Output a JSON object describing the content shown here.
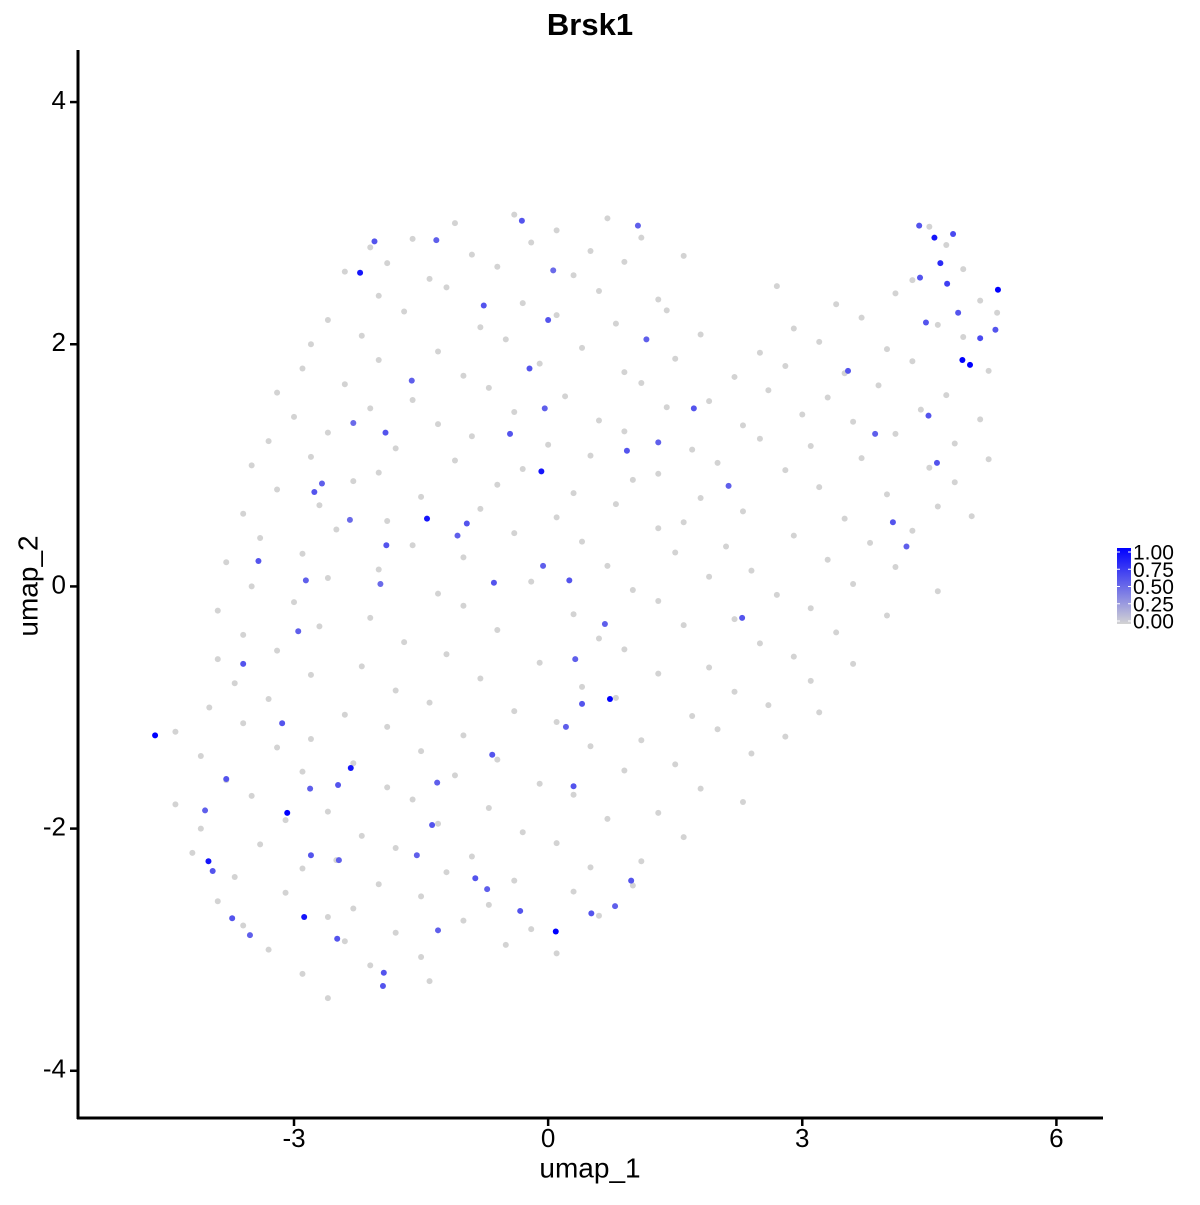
{
  "chart_data": {
    "type": "scatter",
    "title": "Brsk1",
    "x_label": "umap_1",
    "y_label": "umap_2",
    "xlim": [
      -5.55,
      6.55
    ],
    "ylim": [
      -4.39,
      4.43
    ],
    "xticks": [
      -3,
      0,
      3,
      6
    ],
    "yticks": [
      -4,
      -2,
      0,
      2,
      4
    ],
    "grid": false,
    "colorbar": {
      "limits": [
        0,
        1
      ],
      "colors": [
        "#d3d3d3",
        "#0000ff"
      ],
      "ticks": [
        {
          "value": 0,
          "label": "0.00"
        },
        {
          "value": 0.25,
          "label": "0.25"
        },
        {
          "value": 0.5,
          "label": "0.50"
        },
        {
          "value": 0.75,
          "label": "0.75"
        },
        {
          "value": 1,
          "label": "1.00"
        }
      ]
    },
    "x": [
      -1.1,
      -0.4,
      0.1,
      0.7,
      4.5,
      -2.1,
      -1.6,
      -0.9,
      -0.2,
      0.5,
      1.1,
      1.6,
      4.7,
      -2.4,
      -1.9,
      -1.4,
      -0.6,
      0.3,
      0.9,
      4.3,
      4.9,
      -2.0,
      -1.2,
      -0.3,
      0.6,
      1.3,
      2.7,
      3.4,
      4.1,
      5.1,
      -2.6,
      -1.7,
      -0.8,
      0.1,
      0.8,
      1.4,
      2.9,
      3.7,
      4.6,
      5.3,
      -2.8,
      -2.2,
      -1.3,
      -0.5,
      0.4,
      1.8,
      2.5,
      3.2,
      4.0,
      4.9,
      -2.9,
      -2.0,
      -1.0,
      -0.1,
      0.9,
      1.5,
      2.2,
      2.8,
      3.5,
      4.3,
      5.2,
      -3.2,
      -2.4,
      -1.6,
      -0.7,
      0.2,
      1.1,
      1.9,
      2.6,
      3.3,
      3.9,
      4.7,
      -3.0,
      -2.1,
      -1.3,
      -0.4,
      0.6,
      1.4,
      2.3,
      3.0,
      3.6,
      4.4,
      5.1,
      -3.3,
      -2.6,
      -1.8,
      -0.9,
      0.0,
      0.9,
      1.7,
      2.5,
      3.1,
      4.1,
      4.8,
      -3.5,
      -2.8,
      -2.0,
      -1.1,
      -0.3,
      0.5,
      1.3,
      2.0,
      2.8,
      3.7,
      4.5,
      5.2,
      -3.2,
      -2.3,
      -1.5,
      -0.6,
      0.3,
      1.0,
      1.8,
      3.2,
      4.0,
      4.8,
      -3.6,
      -2.7,
      -1.9,
      -0.8,
      0.1,
      0.8,
      1.6,
      2.3,
      3.5,
      4.6,
      5.0,
      -3.4,
      -2.5,
      -1.6,
      -0.4,
      0.4,
      1.3,
      2.1,
      2.9,
      3.8,
      4.3,
      -3.8,
      -2.9,
      -2.0,
      -1.0,
      0.7,
      1.5,
      2.4,
      3.3,
      4.1,
      -3.5,
      -2.6,
      -1.3,
      -0.2,
      1.0,
      1.9,
      2.7,
      3.6,
      4.6,
      -3.9,
      -3.0,
      -2.1,
      -1.0,
      0.3,
      1.3,
      2.2,
      3.1,
      4.0,
      -3.6,
      -2.7,
      -1.7,
      -0.6,
      0.6,
      1.6,
      2.5,
      3.4,
      -3.9,
      -3.2,
      -2.2,
      -1.2,
      -0.1,
      0.9,
      1.9,
      2.9,
      3.6,
      -3.7,
      -2.8,
      -1.8,
      -0.8,
      0.4,
      1.3,
      2.2,
      3.1,
      -4.0,
      -3.3,
      -2.4,
      -1.4,
      -0.4,
      0.8,
      1.7,
      2.6,
      3.2,
      -4.4,
      -3.6,
      -2.8,
      -1.9,
      -1.0,
      0.1,
      1.1,
      2.0,
      2.8,
      -4.1,
      -3.2,
      -2.3,
      -1.5,
      -0.6,
      0.5,
      1.5,
      2.4,
      -3.8,
      -2.9,
      -1.9,
      -1.1,
      -0.1,
      0.9,
      1.8,
      -4.4,
      -3.5,
      -2.6,
      -1.6,
      -0.7,
      0.3,
      1.3,
      2.3,
      -4.1,
      -3.1,
      -2.2,
      -1.3,
      -0.3,
      0.7,
      1.6,
      -4.2,
      -3.4,
      -2.5,
      -1.8,
      -0.9,
      0.1,
      1.1,
      -3.7,
      -2.9,
      -2.0,
      -1.2,
      -0.4,
      0.5,
      1.0,
      -3.9,
      -3.1,
      -2.3,
      -1.5,
      -0.7,
      0.3,
      -3.6,
      -2.6,
      -1.8,
      -1.0,
      -0.2,
      0.6,
      -3.3,
      -2.4,
      -1.5,
      -0.5,
      0.1,
      -2.9,
      -2.1,
      -1.4,
      -2.6,
      -2.05,
      -1.32,
      -0.31,
      0.06,
      1.06,
      -0.76,
      0.0,
      1.16,
      -0.22,
      -1.61,
      -1.92,
      -2.3,
      -0.04,
      -0.45,
      1.72,
      1.3,
      0.93,
      -2.76,
      -2.67,
      -2.34,
      -1.91,
      -2.86,
      -3.42,
      -2.95,
      -3.6,
      -1.98,
      -0.64,
      -0.06,
      0.25,
      0.67,
      0.4,
      0.21,
      0.3,
      -0.66,
      -1.31,
      -1.37,
      -1.55,
      -2.48,
      -2.81,
      -3.14,
      -3.8,
      -4.05,
      -3.96,
      -3.73,
      -3.52,
      -2.8,
      -2.47,
      -1.94,
      -1.95,
      -1.3,
      -0.86,
      -0.72,
      -0.33,
      0.51,
      0.79,
      0.98,
      -1.07,
      -0.96,
      2.13,
      2.29,
      3.54,
      3.86,
      4.07,
      4.23,
      4.59,
      4.49,
      4.71,
      4.39,
      4.84,
      5.1,
      5.28,
      4.46,
      4.38,
      4.78,
      0.32,
      -2.49,
      -4.64,
      -2.22,
      4.56,
      4.63,
      5.31,
      4.89,
      4.98,
      -0.08,
      -1.43,
      0.73,
      -2.33,
      -3.08,
      -4.01,
      -2.88,
      0.09
    ],
    "y": [
      3.0,
      3.07,
      2.94,
      3.04,
      2.97,
      2.8,
      2.87,
      2.74,
      2.84,
      2.77,
      2.88,
      2.73,
      2.82,
      2.6,
      2.67,
      2.54,
      2.64,
      2.57,
      2.68,
      2.53,
      2.62,
      2.4,
      2.47,
      2.34,
      2.44,
      2.37,
      2.48,
      2.33,
      2.42,
      2.36,
      2.2,
      2.27,
      2.14,
      2.24,
      2.17,
      2.28,
      2.13,
      2.22,
      2.16,
      2.26,
      2.0,
      2.07,
      1.94,
      2.04,
      1.97,
      2.08,
      1.93,
      2.02,
      1.96,
      2.06,
      1.8,
      1.87,
      1.74,
      1.84,
      1.77,
      1.88,
      1.73,
      1.82,
      1.76,
      1.86,
      1.78,
      1.6,
      1.67,
      1.54,
      1.64,
      1.57,
      1.68,
      1.53,
      1.62,
      1.56,
      1.66,
      1.58,
      1.4,
      1.47,
      1.34,
      1.44,
      1.37,
      1.48,
      1.33,
      1.42,
      1.36,
      1.46,
      1.38,
      1.2,
      1.27,
      1.14,
      1.24,
      1.17,
      1.28,
      1.13,
      1.22,
      1.16,
      1.26,
      1.18,
      1.0,
      1.07,
      0.94,
      1.04,
      0.97,
      1.08,
      0.93,
      1.02,
      0.96,
      1.06,
      0.98,
      1.05,
      0.8,
      0.87,
      0.74,
      0.84,
      0.77,
      0.88,
      0.73,
      0.82,
      0.76,
      0.86,
      0.6,
      0.67,
      0.54,
      0.64,
      0.57,
      0.68,
      0.53,
      0.62,
      0.56,
      0.66,
      0.58,
      0.4,
      0.47,
      0.34,
      0.44,
      0.37,
      0.48,
      0.33,
      0.42,
      0.36,
      0.46,
      0.2,
      0.27,
      0.14,
      0.24,
      0.17,
      0.28,
      0.13,
      0.22,
      0.16,
      0,
      0.07,
      -0.06,
      0.04,
      -0.03,
      0.08,
      -0.07,
      0.02,
      -0.04,
      -0.2,
      -0.13,
      -0.26,
      -0.16,
      -0.23,
      -0.12,
      -0.27,
      -0.18,
      -0.24,
      -0.4,
      -0.33,
      -0.46,
      -0.36,
      -0.43,
      -0.32,
      -0.47,
      -0.38,
      -0.6,
      -0.53,
      -0.66,
      -0.56,
      -0.63,
      -0.52,
      -0.67,
      -0.58,
      -0.64,
      -0.8,
      -0.73,
      -0.86,
      -0.76,
      -0.83,
      -0.72,
      -0.87,
      -0.78,
      -1.0,
      -0.93,
      -1.06,
      -0.96,
      -1.03,
      -0.92,
      -1.07,
      -0.98,
      -1.04,
      -1.2,
      -1.13,
      -1.26,
      -1.16,
      -1.23,
      -1.12,
      -1.27,
      -1.18,
      -1.24,
      -1.4,
      -1.33,
      -1.46,
      -1.36,
      -1.43,
      -1.32,
      -1.47,
      -1.38,
      -1.6,
      -1.53,
      -1.66,
      -1.56,
      -1.63,
      -1.52,
      -1.67,
      -1.8,
      -1.73,
      -1.86,
      -1.76,
      -1.83,
      -1.72,
      -1.87,
      -1.78,
      -2.0,
      -1.93,
      -2.06,
      -1.96,
      -2.03,
      -1.92,
      -2.07,
      -2.2,
      -2.13,
      -2.26,
      -2.16,
      -2.23,
      -2.12,
      -2.27,
      -2.4,
      -2.33,
      -2.46,
      -2.36,
      -2.43,
      -2.32,
      -2.47,
      -2.6,
      -2.53,
      -2.66,
      -2.56,
      -2.63,
      -2.52,
      -2.8,
      -2.73,
      -2.86,
      -2.76,
      -2.83,
      -2.72,
      -3.0,
      -2.93,
      -3.06,
      -2.96,
      -3.03,
      -3.2,
      -3.13,
      -3.26,
      -3.4,
      2.85,
      2.86,
      3.02,
      2.61,
      2.98,
      2.32,
      2.2,
      2.04,
      1.8,
      1.7,
      1.27,
      1.35,
      1.47,
      1.26,
      1.47,
      1.19,
      1.12,
      0.78,
      0.85,
      0.55,
      0.34,
      0.05,
      0.21,
      -0.37,
      -0.64,
      0.02,
      0.03,
      0.17,
      0.05,
      -0.31,
      -0.97,
      -1.16,
      -1.65,
      -1.39,
      -1.62,
      -1.97,
      -2.22,
      -1.64,
      -1.67,
      -1.13,
      -1.59,
      -1.85,
      -2.35,
      -2.74,
      -2.88,
      -2.22,
      -2.26,
      -3.19,
      -3.3,
      -2.84,
      -2.41,
      -2.5,
      -2.68,
      -2.7,
      -2.64,
      -2.43,
      0.42,
      0.52,
      0.83,
      -0.26,
      1.78,
      1.26,
      0.53,
      0.33,
      1.02,
      1.41,
      2.5,
      2.55,
      2.26,
      2.05,
      2.12,
      2.18,
      2.98,
      2.91,
      -0.6,
      -2.91,
      -1.23,
      2.59,
      2.88,
      2.67,
      2.45,
      1.87,
      1.83,
      0.95,
      0.56,
      -0.93,
      -1.5,
      -1.87,
      -2.27,
      -2.73,
      -2.85
    ],
    "values": [
      0,
      0,
      0,
      0,
      0,
      0,
      0,
      0,
      0,
      0,
      0,
      0,
      0,
      0,
      0,
      0,
      0,
      0,
      0,
      0,
      0,
      0,
      0,
      0,
      0,
      0,
      0,
      0,
      0,
      0,
      0,
      0,
      0,
      0,
      0,
      0,
      0,
      0,
      0,
      0,
      0,
      0,
      0,
      0,
      0,
      0,
      0,
      0,
      0,
      0,
      0,
      0,
      0,
      0,
      0,
      0,
      0,
      0,
      0,
      0,
      0,
      0,
      0,
      0,
      0,
      0,
      0,
      0,
      0,
      0,
      0,
      0,
      0,
      0,
      0,
      0,
      0,
      0,
      0,
      0,
      0,
      0,
      0,
      0,
      0,
      0,
      0,
      0,
      0,
      0,
      0,
      0,
      0,
      0,
      0,
      0,
      0,
      0,
      0,
      0,
      0,
      0,
      0,
      0,
      0,
      0,
      0,
      0,
      0,
      0,
      0,
      0,
      0,
      0,
      0,
      0,
      0,
      0,
      0,
      0,
      0,
      0,
      0,
      0,
      0,
      0,
      0,
      0,
      0,
      0,
      0,
      0,
      0,
      0,
      0,
      0,
      0,
      0,
      0,
      0,
      0,
      0,
      0,
      0,
      0,
      0,
      0,
      0,
      0,
      0,
      0,
      0,
      0,
      0,
      0,
      0,
      0,
      0,
      0,
      0,
      0,
      0,
      0,
      0,
      0,
      0,
      0,
      0,
      0,
      0,
      0,
      0,
      0,
      0,
      0,
      0,
      0,
      0,
      0,
      0,
      0,
      0,
      0,
      0,
      0,
      0,
      0,
      0,
      0,
      0,
      0,
      0,
      0,
      0,
      0,
      0,
      0,
      0,
      0,
      0,
      0,
      0,
      0,
      0,
      0,
      0,
      0,
      0,
      0,
      0,
      0,
      0,
      0,
      0,
      0,
      0,
      0,
      0,
      0,
      0,
      0,
      0,
      0,
      0,
      0,
      0,
      0,
      0,
      0,
      0,
      0,
      0,
      0,
      0,
      0,
      0,
      0,
      0,
      0,
      0,
      0,
      0,
      0,
      0,
      0,
      0,
      0,
      0,
      0,
      0,
      0,
      0,
      0,
      0,
      0,
      0,
      0,
      0,
      0,
      0,
      0,
      0,
      0,
      0,
      0,
      0,
      0,
      0,
      0,
      0,
      0,
      0,
      0.6,
      0.55,
      0.6,
      0.5,
      0.55,
      0.6,
      0.6,
      0.55,
      0.6,
      0.55,
      0.6,
      0.5,
      0.55,
      0.6,
      0.6,
      0.55,
      0.6,
      0.6,
      0.55,
      0.5,
      0.6,
      0.55,
      0.6,
      0.55,
      0.6,
      0.5,
      0.6,
      0.55,
      0.6,
      0.55,
      0.6,
      0.55,
      0.6,
      0.6,
      0.55,
      0.6,
      0.55,
      0.6,
      0.55,
      0.6,
      0.6,
      0.55,
      0.6,
      0.6,
      0.55,
      0.6,
      0.55,
      0.6,
      0.6,
      0.55,
      0.6,
      0.55,
      0.6,
      0.6,
      0.55,
      0.6,
      0.55,
      0.6,
      0.55,
      0.6,
      0.6,
      0.55,
      0.6,
      0.55,
      0.6,
      0.6,
      0.7,
      0.6,
      0.6,
      0.65,
      0.6,
      0.6,
      0.6,
      0.65,
      0.55,
      0.6,
      1.0,
      0.9,
      0.9,
      0.8,
      1.0,
      1.0,
      1.0,
      0.9,
      0.9,
      1.0,
      0.9,
      1.0,
      0.9,
      0.9,
      1.0
    ]
  }
}
